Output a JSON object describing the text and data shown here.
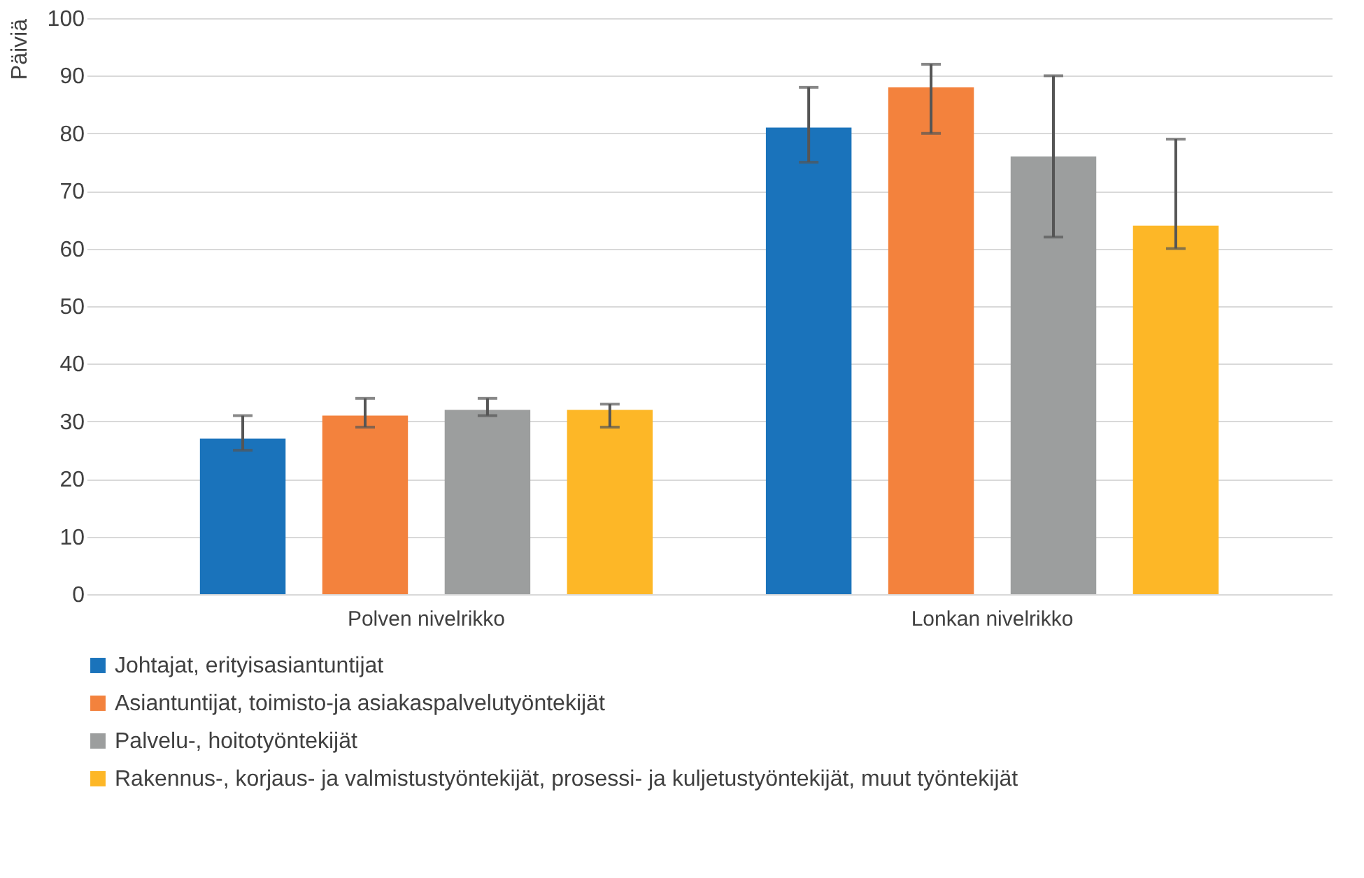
{
  "chart_data": {
    "type": "bar",
    "ylabel": "Päiviä",
    "categories": [
      "Polven nivelrikko",
      "Lonkan nivelrikko"
    ],
    "series": [
      {
        "name": "Johtajat, erityisasiantuntijat",
        "color": "#1a73bb",
        "values": [
          27,
          81
        ],
        "errors": [
          [
            25,
            31
          ],
          [
            75,
            88
          ]
        ]
      },
      {
        "name": "Asiantuntijat, toimisto-ja asiakaspalvelutyöntekijät",
        "color": "#f3823d",
        "values": [
          31,
          88
        ],
        "errors": [
          [
            29,
            34
          ],
          [
            80,
            92
          ]
        ]
      },
      {
        "name": "Palvelu-, hoitotyöntekijät",
        "color": "#9c9e9e",
        "values": [
          32,
          76
        ],
        "errors": [
          [
            31,
            34
          ],
          [
            62,
            90
          ]
        ]
      },
      {
        "name": "Rakennus-, korjaus- ja valmistustyöntekijät, prosessi- ja kuljetustyöntekijät, muut työntekijät",
        "color": "#fdb727",
        "values": [
          32,
          64
        ],
        "errors": [
          [
            29,
            33
          ],
          [
            60,
            79
          ]
        ]
      }
    ],
    "ylim": [
      0,
      100
    ],
    "yticks": [
      0,
      10,
      20,
      30,
      40,
      50,
      60,
      70,
      80,
      90,
      100
    ],
    "grid": "y",
    "legend": "bottom"
  }
}
